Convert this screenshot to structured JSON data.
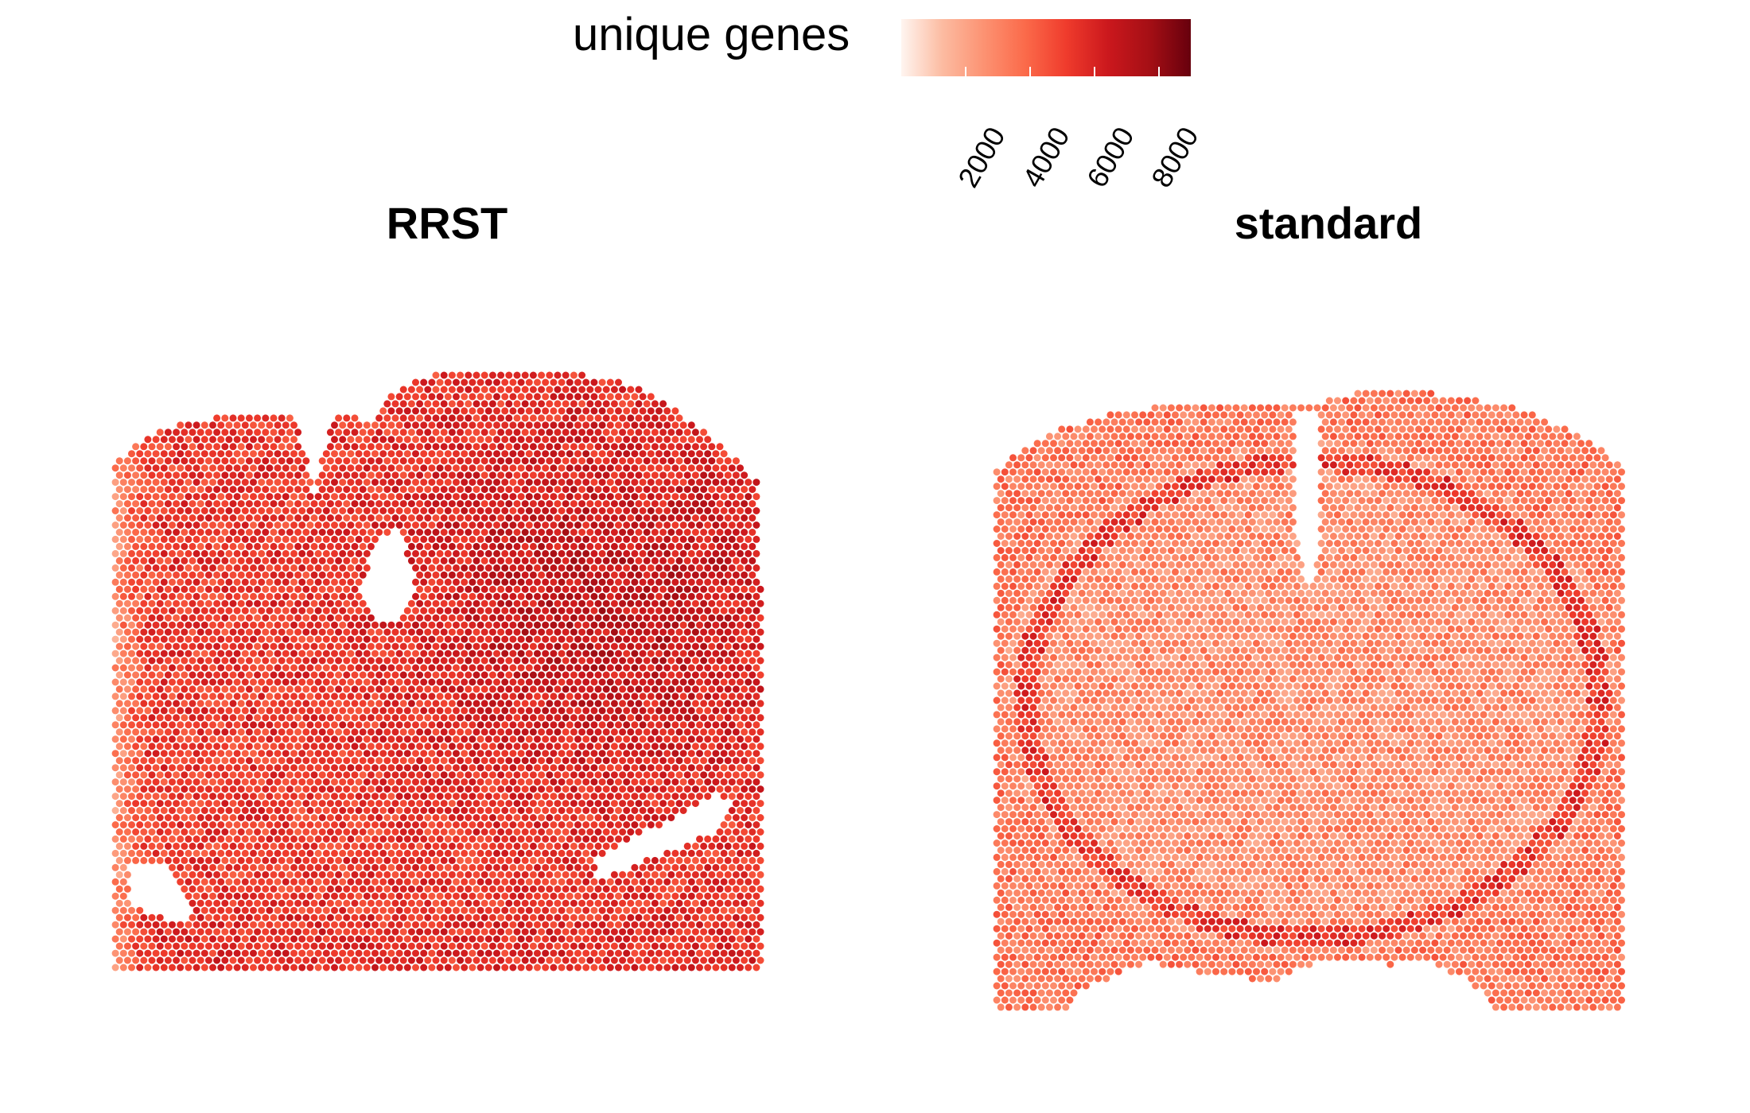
{
  "chart_data": {
    "type": "heatmap",
    "legend": {
      "title": "unique genes",
      "min": 0,
      "max": 9000,
      "ticks": [
        "2000",
        "4000",
        "6000",
        "8000"
      ],
      "tick_values": [
        2000,
        4000,
        6000,
        8000
      ],
      "colors": [
        "#fff5f0",
        "#fcbba1",
        "#fc9272",
        "#fb6a4a",
        "#ef3b2c",
        "#cb181d",
        "#a50f15",
        "#67000d"
      ]
    },
    "panels": [
      {
        "title": "RRST",
        "typical_unique_genes": 6000,
        "range": [
          500,
          8600
        ]
      },
      {
        "title": "standard",
        "typical_unique_genes": 3300,
        "range": [
          200,
          7000
        ]
      }
    ]
  }
}
